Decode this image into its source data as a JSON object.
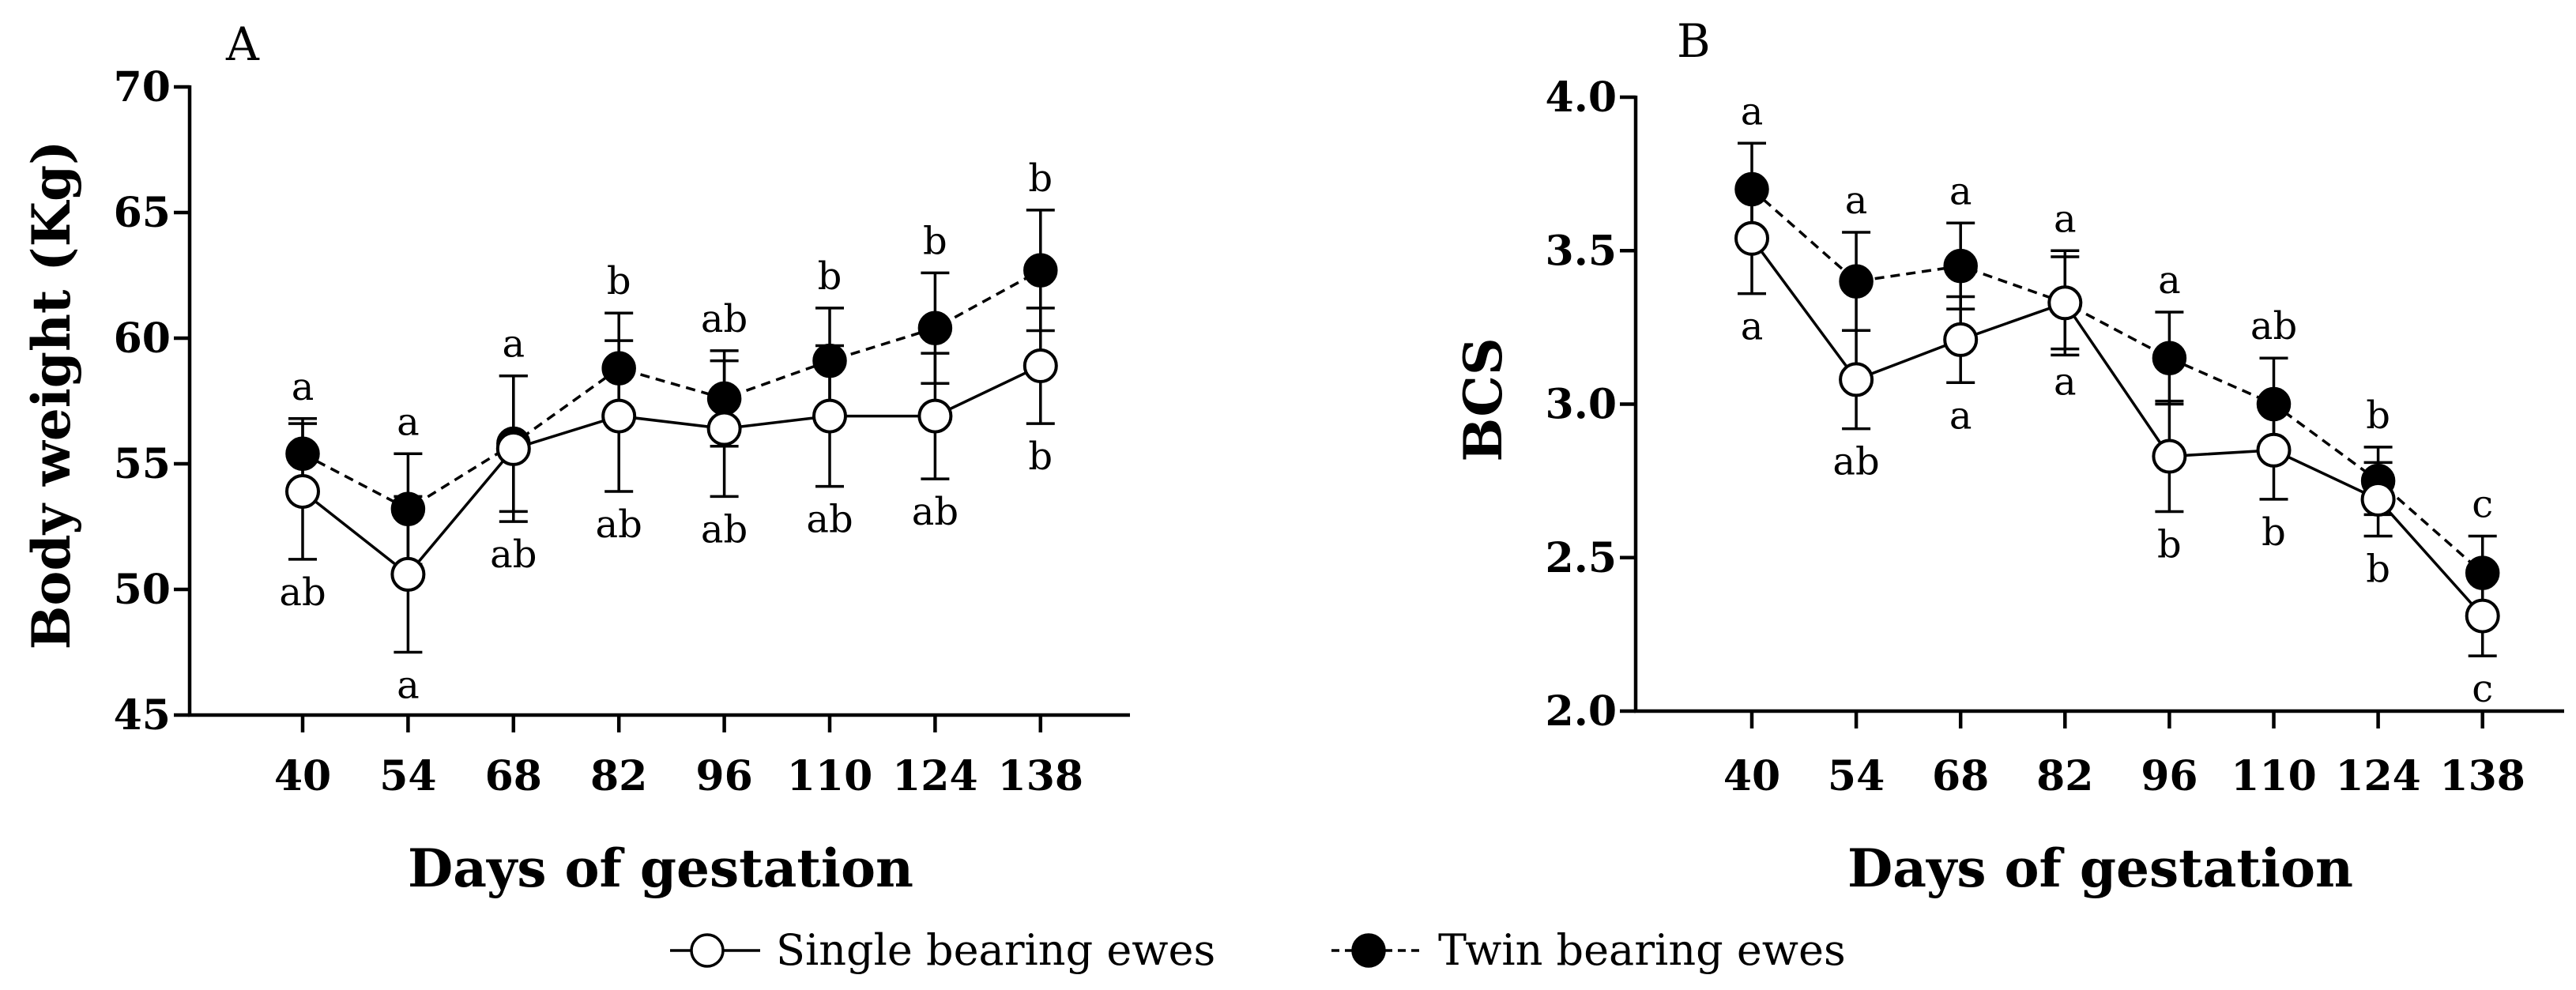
{
  "legend": {
    "single_label": "Single bearing ewes",
    "twin_label": "Twin bearing ewes"
  },
  "chart_data": [
    {
      "type": "line",
      "panel_label": "A",
      "xlabel": "Days of gestation",
      "ylabel": "Body weight (Kg)",
      "categories": [
        "40",
        "54",
        "68",
        "82",
        "96",
        "110",
        "124",
        "138"
      ],
      "ylim": [
        45,
        70
      ],
      "yticks": [
        45,
        50,
        55,
        60,
        65,
        70
      ],
      "series": [
        {
          "name": "Single bearing ewes",
          "marker": "open-circle",
          "linestyle": "solid",
          "values": [
            53.9,
            50.6,
            55.6,
            56.9,
            56.4,
            56.9,
            56.9,
            58.9
          ],
          "errors": [
            2.7,
            3.1,
            2.9,
            3.0,
            2.7,
            2.8,
            2.5,
            2.3
          ],
          "letters": [
            "ab",
            "a",
            "ab",
            "ab",
            "ab",
            "ab",
            "ab",
            "b"
          ]
        },
        {
          "name": "Twin bearing ewes",
          "marker": "filled-circle",
          "linestyle": "dashed",
          "values": [
            55.4,
            53.2,
            55.8,
            58.8,
            57.6,
            59.1,
            60.4,
            62.7
          ],
          "errors": [
            1.4,
            2.2,
            2.7,
            2.2,
            1.9,
            2.1,
            2.2,
            2.4
          ],
          "letters": [
            "a",
            "a",
            "a",
            "b",
            "ab",
            "b",
            "b",
            "b"
          ]
        }
      ]
    },
    {
      "type": "line",
      "panel_label": "B",
      "xlabel": "Days of gestation",
      "ylabel": "BCS",
      "categories": [
        "40",
        "54",
        "68",
        "82",
        "96",
        "110",
        "124",
        "138"
      ],
      "ylim": [
        2.0,
        4.0
      ],
      "yticks": [
        "2.0",
        "2.5",
        "3.0",
        "3.5",
        "4.0"
      ],
      "series": [
        {
          "name": "Single bearing ewes",
          "marker": "open-circle",
          "linestyle": "solid",
          "values": [
            3.54,
            3.08,
            3.21,
            3.33,
            2.83,
            2.85,
            2.69,
            2.31
          ],
          "errors": [
            0.18,
            0.16,
            0.14,
            0.15,
            0.18,
            0.16,
            0.12,
            0.13
          ],
          "letters": [
            "a",
            "ab",
            "a",
            "a",
            "b",
            "b",
            "b",
            "c"
          ]
        },
        {
          "name": "Twin bearing ewes",
          "marker": "filled-circle",
          "linestyle": "dashed",
          "values": [
            3.7,
            3.4,
            3.45,
            3.33,
            3.15,
            3.0,
            2.75,
            2.45
          ],
          "errors": [
            0.15,
            0.16,
            0.14,
            0.17,
            0.15,
            0.15,
            0.11,
            0.12
          ],
          "letters": [
            "a",
            "a",
            "a",
            "a",
            "a",
            "ab",
            "b",
            "c"
          ]
        }
      ]
    }
  ]
}
